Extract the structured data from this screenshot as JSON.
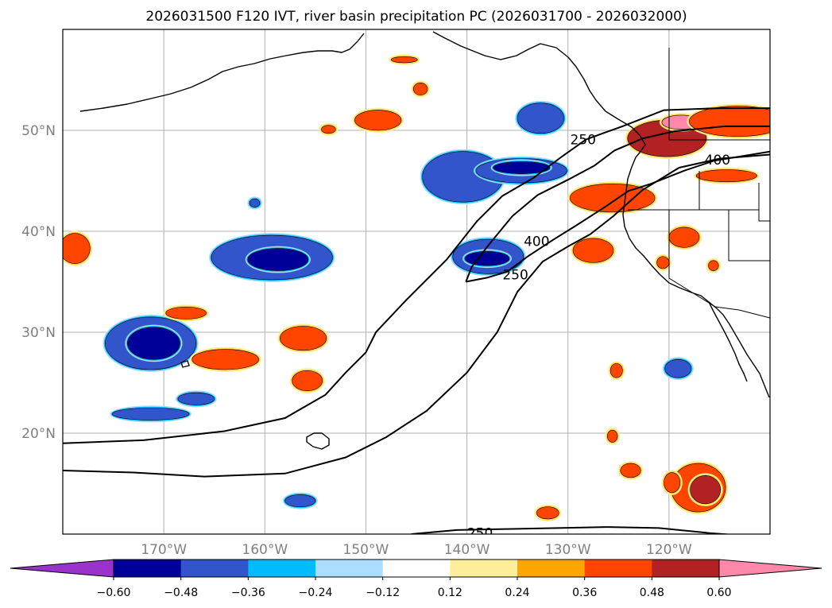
{
  "chart_data": {
    "type": "contour-map",
    "title": "2026031500 F120 IVT, river basin precipitation PC (2026031700 - 2026032000)",
    "map": {
      "lon_range": [
        -180,
        -110
      ],
      "lat_range": [
        10,
        60
      ],
      "lon_ticks": [
        -170,
        -160,
        -150,
        -140,
        -130,
        -120
      ],
      "lon_tick_labels": [
        "170°W",
        "160°W",
        "150°W",
        "140°W",
        "130°W",
        "120°W"
      ],
      "lat_ticks": [
        20,
        30,
        40,
        50
      ],
      "lat_tick_labels": [
        "20°N",
        "30°N",
        "40°N",
        "50°N"
      ],
      "gridlines": true
    },
    "ivt_contours": {
      "levels": [
        250,
        400
      ],
      "labels": [
        {
          "text": "250",
          "lon": -128.5,
          "lat": 49.1
        },
        {
          "text": "400",
          "lon": -115.2,
          "lat": 47.1
        },
        {
          "text": "400",
          "lon": -133.1,
          "lat": 39.0
        },
        {
          "text": "250",
          "lon": -135.2,
          "lat": 35.7
        },
        {
          "text": "250",
          "lon": -138.7,
          "lat": 10.1
        }
      ]
    },
    "colorbar": {
      "levels": [
        -0.6,
        -0.48,
        -0.36,
        -0.24,
        -0.12,
        0.12,
        0.24,
        0.36,
        0.48,
        0.6
      ],
      "tick_labels": [
        "−0.60",
        "−0.48",
        "−0.36",
        "−0.24",
        "−0.12",
        "0.12",
        "0.24",
        "0.36",
        "0.48",
        "0.60"
      ],
      "colors": [
        "#9933cc",
        "#000099",
        "#3355cc",
        "#00bbff",
        "#aaddff",
        "#ffffff",
        "#ffee99",
        "#ffa500",
        "#ff4500",
        "#b22222",
        "#ff88aa"
      ],
      "extend": "both"
    },
    "precip_pc_regions": [
      {
        "lon": -178.8,
        "lat": 38.3,
        "rx": 1.5,
        "ry": 1.5,
        "level": 0.36
      },
      {
        "lon": -171.3,
        "lat": 28.9,
        "rx": 4.5,
        "ry": 2.6,
        "level": -0.36
      },
      {
        "lon": -171.0,
        "lat": 28.9,
        "rx": 2.6,
        "ry": 1.6,
        "level": -0.48
      },
      {
        "lon": -167.8,
        "lat": 31.9,
        "rx": 2.0,
        "ry": 0.6,
        "level": 0.36
      },
      {
        "lon": -163.9,
        "lat": 27.3,
        "rx": 3.3,
        "ry": 1.0,
        "level": 0.36
      },
      {
        "lon": -159.3,
        "lat": 37.4,
        "rx": 6.0,
        "ry": 2.2,
        "level": -0.36
      },
      {
        "lon": -158.7,
        "lat": 37.2,
        "rx": 3.0,
        "ry": 1.1,
        "level": -0.48
      },
      {
        "lon": -156.2,
        "lat": 29.4,
        "rx": 2.3,
        "ry": 1.2,
        "level": 0.36
      },
      {
        "lon": -155.8,
        "lat": 25.2,
        "rx": 1.5,
        "ry": 1.0,
        "level": 0.36
      },
      {
        "lon": -171.3,
        "lat": 21.9,
        "rx": 3.8,
        "ry": 0.6,
        "level": -0.36
      },
      {
        "lon": -166.8,
        "lat": 23.4,
        "rx": 1.8,
        "ry": 0.6,
        "level": -0.36
      },
      {
        "lon": -156.5,
        "lat": 13.3,
        "rx": 1.5,
        "ry": 0.6,
        "level": -0.36
      },
      {
        "lon": -161.0,
        "lat": 42.8,
        "rx": 0.5,
        "ry": 0.4,
        "level": -0.36
      },
      {
        "lon": -153.7,
        "lat": 50.1,
        "rx": 0.7,
        "ry": 0.4,
        "level": 0.36
      },
      {
        "lon": -148.8,
        "lat": 51.0,
        "rx": 2.3,
        "ry": 1.0,
        "level": 0.36
      },
      {
        "lon": -144.6,
        "lat": 54.1,
        "rx": 0.7,
        "ry": 0.6,
        "level": 0.36
      },
      {
        "lon": -146.2,
        "lat": 57.0,
        "rx": 1.3,
        "ry": 0.3,
        "level": 0.36
      },
      {
        "lon": -140.4,
        "lat": 45.4,
        "rx": 4.0,
        "ry": 2.5,
        "level": -0.36
      },
      {
        "lon": -134.6,
        "lat": 46.0,
        "rx": 4.5,
        "ry": 1.2,
        "level": -0.36
      },
      {
        "lon": -134.6,
        "lat": 46.3,
        "rx": 2.8,
        "ry": 0.6,
        "level": -0.48
      },
      {
        "lon": -137.9,
        "lat": 37.5,
        "rx": 3.5,
        "ry": 1.7,
        "level": -0.36
      },
      {
        "lon": -138.0,
        "lat": 37.3,
        "rx": 2.2,
        "ry": 0.7,
        "level": -0.48
      },
      {
        "lon": -132.7,
        "lat": 51.2,
        "rx": 2.3,
        "ry": 1.5,
        "level": -0.36
      },
      {
        "lon": -125.6,
        "lat": 43.3,
        "rx": 4.2,
        "ry": 1.4,
        "level": 0.36
      },
      {
        "lon": -120.2,
        "lat": 49.2,
        "rx": 3.9,
        "ry": 1.8,
        "level": 0.48
      },
      {
        "lon": -118.8,
        "lat": 50.8,
        "rx": 1.9,
        "ry": 0.7,
        "level": 0.6
      },
      {
        "lon": -113.2,
        "lat": 50.9,
        "rx": 4.8,
        "ry": 1.5,
        "level": 0.36
      },
      {
        "lon": -114.3,
        "lat": 45.5,
        "rx": 3.0,
        "ry": 0.6,
        "level": 0.36
      },
      {
        "lon": -127.5,
        "lat": 38.1,
        "rx": 2.0,
        "ry": 1.2,
        "level": 0.36
      },
      {
        "lon": -118.5,
        "lat": 39.4,
        "rx": 1.5,
        "ry": 1.0,
        "level": 0.36
      },
      {
        "lon": -120.6,
        "lat": 36.9,
        "rx": 0.6,
        "ry": 0.6,
        "level": 0.36
      },
      {
        "lon": -115.6,
        "lat": 36.6,
        "rx": 0.5,
        "ry": 0.5,
        "level": 0.36
      },
      {
        "lon": -119.1,
        "lat": 26.4,
        "rx": 1.3,
        "ry": 0.9,
        "level": -0.36
      },
      {
        "lon": -125.2,
        "lat": 26.2,
        "rx": 0.6,
        "ry": 0.7,
        "level": 0.36
      },
      {
        "lon": -125.6,
        "lat": 19.7,
        "rx": 0.5,
        "ry": 0.6,
        "level": 0.36
      },
      {
        "lon": -123.8,
        "lat": 16.3,
        "rx": 1.0,
        "ry": 0.7,
        "level": 0.36
      },
      {
        "lon": -117.1,
        "lat": 14.6,
        "rx": 2.7,
        "ry": 2.4,
        "level": 0.36
      },
      {
        "lon": -116.4,
        "lat": 14.4,
        "rx": 1.5,
        "ry": 1.4,
        "level": 0.48
      },
      {
        "lon": -119.7,
        "lat": 15.1,
        "rx": 0.8,
        "ry": 1.0,
        "level": 0.36
      },
      {
        "lon": -132.0,
        "lat": 12.1,
        "rx": 1.1,
        "ry": 0.6,
        "level": 0.36
      }
    ]
  }
}
